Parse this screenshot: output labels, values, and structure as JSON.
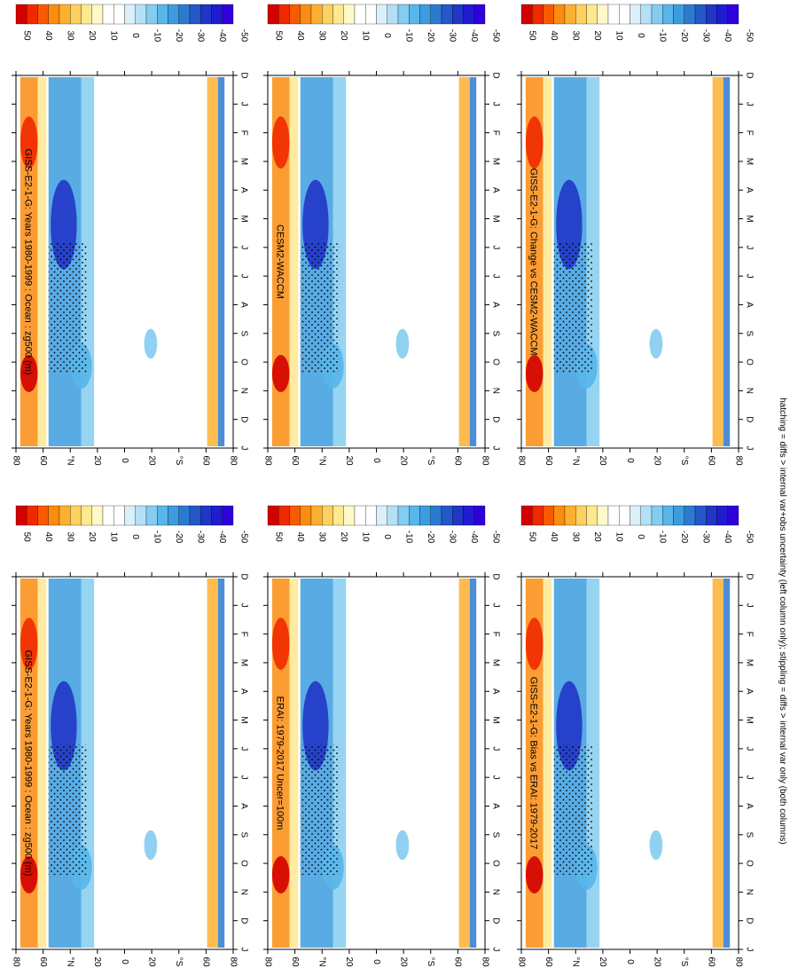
{
  "footnote": "hatching = diffs > internal var+obs uncertainty (left column only); stippling = diffs > internal var only (both columns)",
  "colorbar": {
    "labels": [
      "50",
      "40",
      "30",
      "20",
      "10",
      "0",
      "-10",
      "-20",
      "-30",
      "-40",
      "-50"
    ],
    "colors": [
      "#d40000",
      "#f02a00",
      "#f85a00",
      "#fb8c10",
      "#fdb030",
      "#fed060",
      "#fee890",
      "#fff8c8",
      "#ffffff",
      "#ffffff",
      "#dcf0fa",
      "#b4e0f6",
      "#84ccf0",
      "#58b6ea",
      "#3c9cdf",
      "#2c7ad0",
      "#2458c8",
      "#2036c6",
      "#201cd0",
      "#3000dc"
    ]
  },
  "months": [
    "D",
    "J",
    "F",
    "M",
    "A",
    "M",
    "J",
    "J",
    "A",
    "S",
    "O",
    "N",
    "D",
    "J"
  ],
  "lat_ticks": [
    "80",
    "60",
    "°N",
    "20",
    "0",
    "20",
    "°S",
    "60",
    "80"
  ],
  "panels": [
    {
      "title": "GISS-E2-1-G: Years 1980-1999 : Ocean : zg500 (m)"
    },
    {
      "title": "GISS-E2-1-G: Years 1980-1999 : Ocean : zg500 (m)"
    },
    {
      "title": "ERAI: 1979-2017 Uncer=100m"
    },
    {
      "title": "CESM2-WACCM"
    },
    {
      "title": "GISS-E2-1-G: Bias vs ERAI: 1979-2017"
    },
    {
      "title": "GISS-E2-1-G: Change vs CESM2-WACCM"
    }
  ],
  "chart_data": {
    "type": "heatmap",
    "variable": "zg500 (m)",
    "x": [
      "D",
      "J",
      "F",
      "M",
      "A",
      "M",
      "J",
      "J",
      "A",
      "S",
      "O",
      "N",
      "D",
      "J"
    ],
    "y": [
      "80",
      "60",
      "°N",
      "20",
      "0",
      "20",
      "°S",
      "60",
      "80"
    ],
    "color_range": [
      -50,
      50
    ]
  }
}
